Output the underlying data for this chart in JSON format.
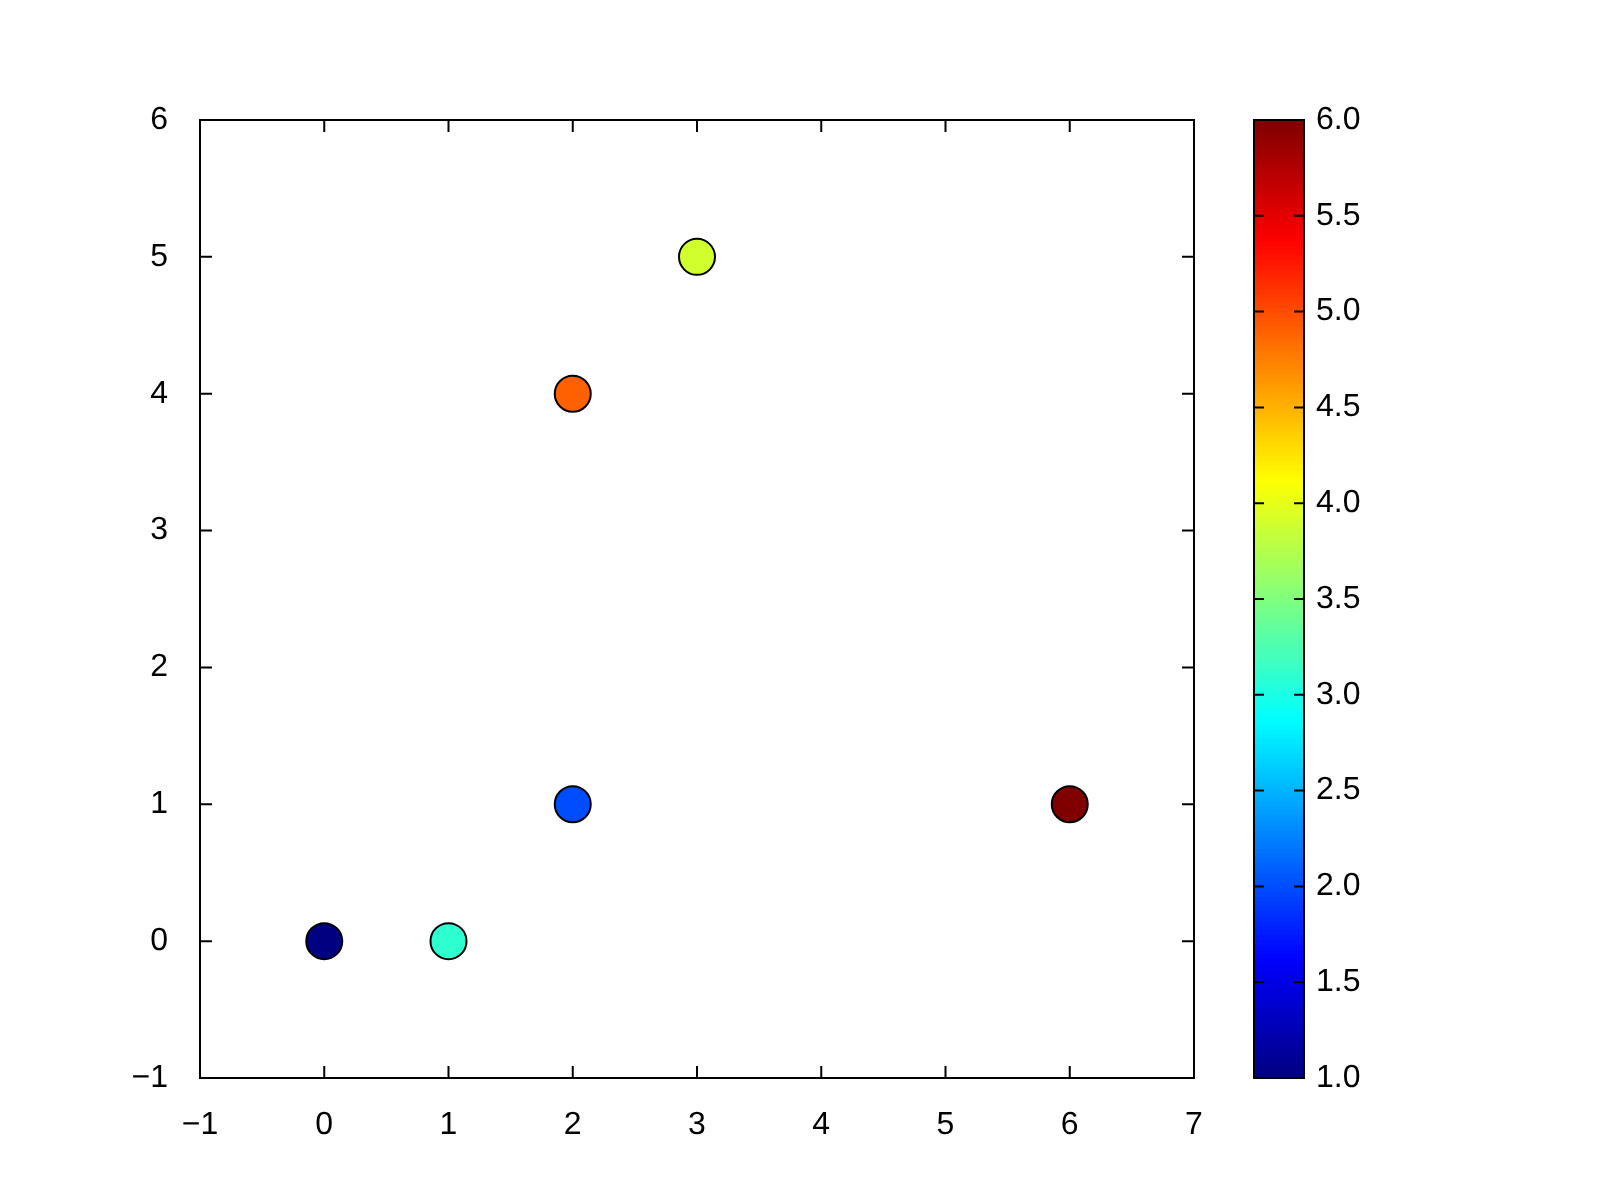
{
  "chart_data": {
    "type": "scatter",
    "x": [
      0,
      1,
      2,
      2,
      3,
      6
    ],
    "values": [
      0,
      0,
      1,
      4,
      5,
      1
    ],
    "cvalues": [
      1,
      3.1,
      2,
      4.9,
      3.9,
      6
    ],
    "clim": [
      1,
      6
    ],
    "cticks": [
      {
        "value": 1,
        "label": "1.0"
      },
      {
        "value": 1.5,
        "label": "1.5"
      },
      {
        "value": 2,
        "label": "2.0"
      },
      {
        "value": 2.5,
        "label": "2.5"
      },
      {
        "value": 3,
        "label": "3.0"
      },
      {
        "value": 3.5,
        "label": "3.5"
      },
      {
        "value": 4,
        "label": "4.0"
      },
      {
        "value": 4.5,
        "label": "4.5"
      },
      {
        "value": 5,
        "label": "5.0"
      },
      {
        "value": 5.5,
        "label": "5.5"
      },
      {
        "value": 6,
        "label": "6.0"
      }
    ],
    "xlim": [
      -1,
      7
    ],
    "xticks": [
      {
        "value": -1,
        "label": "−1"
      },
      0,
      1,
      2,
      3,
      4,
      5,
      6,
      7
    ],
    "ylim": [
      -1,
      6
    ],
    "yticks": [
      {
        "value": -1,
        "label": "−1"
      },
      0,
      1,
      2,
      3,
      4,
      5,
      6
    ],
    "grid": false,
    "legend": false,
    "marker": "circle"
  }
}
